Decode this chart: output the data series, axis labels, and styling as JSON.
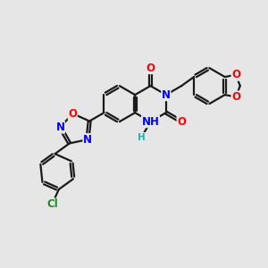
{
  "bg_color": "#e6e6e6",
  "bond_color": "#1a1a1a",
  "bond_width": 1.6,
  "dbo": 0.05,
  "atom_colors": {
    "O": "#ff0000",
    "N": "#0000ff",
    "H": "#20b2aa",
    "Cl": "#228b22",
    "C": "#1a1a1a"
  },
  "fs": 8.5
}
